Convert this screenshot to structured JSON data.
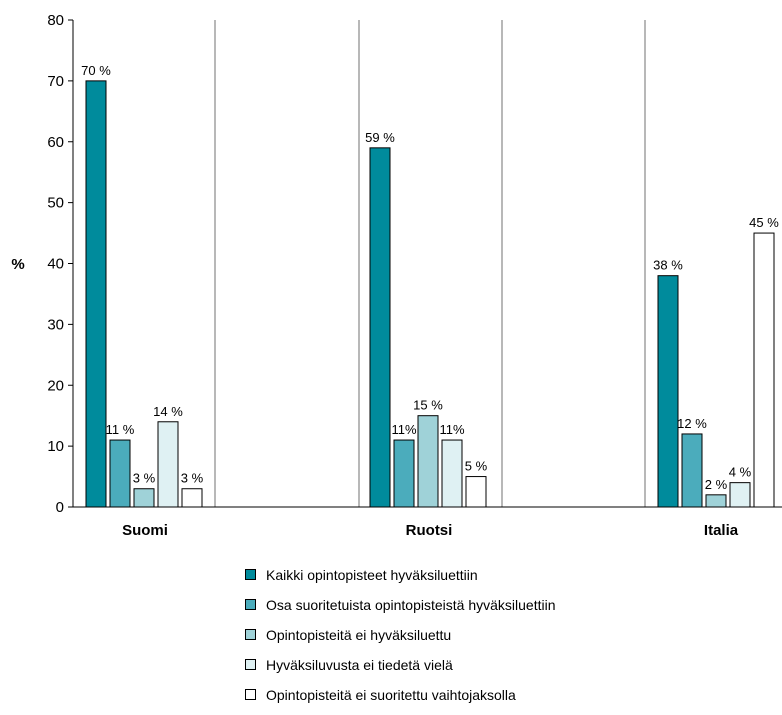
{
  "chart_data": {
    "type": "bar",
    "ylabel": "%",
    "ylim": [
      0,
      80
    ],
    "yticks": [
      "0",
      "10",
      "20",
      "30",
      "40",
      "50",
      "60",
      "70",
      "80"
    ],
    "categories": [
      "Suomi",
      "Ruotsi",
      "Italia"
    ],
    "grid": false,
    "legend_position": "bottom",
    "series": [
      {
        "name": "Kaikki opintopisteet hyväksiluettiin",
        "color": "#008b9c",
        "values": [
          70,
          59,
          38
        ],
        "labels": [
          "70 %",
          "59 %",
          "38 %"
        ]
      },
      {
        "name": "Osa suoritetuista opintopisteistä hyväksiluettiin",
        "color": "#4bacbc",
        "values": [
          11,
          11,
          12
        ],
        "labels": [
          "11 %",
          "11%",
          "12 %"
        ]
      },
      {
        "name": "Opintopisteitä ei hyväksiluettu",
        "color": "#9fd2d8",
        "values": [
          3,
          15,
          2
        ],
        "labels": [
          "3 %",
          "15 %",
          "2 %"
        ]
      },
      {
        "name": "Hyväksiluvusta ei tiedetä vielä",
        "color": "#dff1f3",
        "values": [
          14,
          11,
          4
        ],
        "labels": [
          "14 %",
          "11%",
          "4 %"
        ]
      },
      {
        "name": "Opintopisteitä ei suoritettu vaihtojaksolla",
        "color": "#ffffff",
        "values": [
          3,
          5,
          45
        ],
        "labels": [
          "3 %",
          "5 %",
          "45 %"
        ]
      }
    ]
  }
}
